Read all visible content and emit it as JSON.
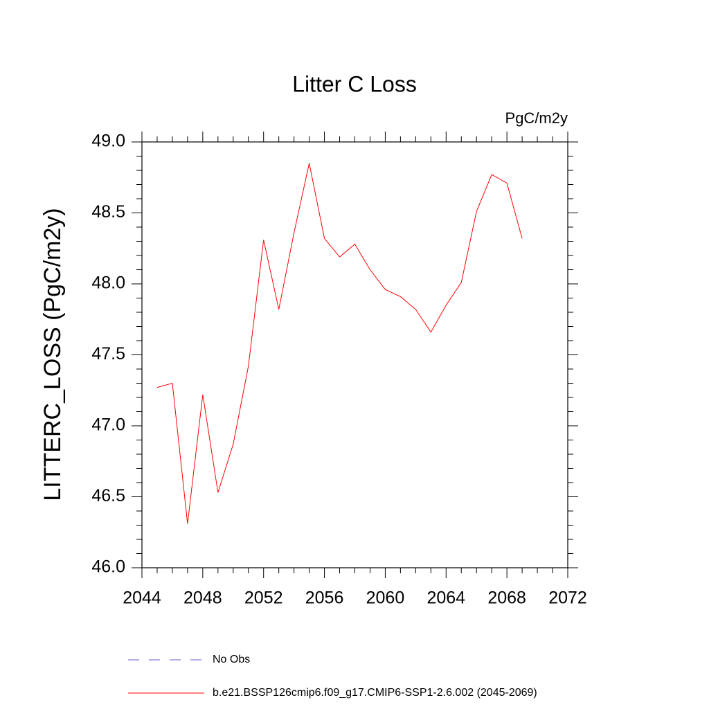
{
  "chart_data": {
    "type": "line",
    "title": "Litter C Loss",
    "units": "PgC/m2y",
    "y_label": "LITTERC_LOSS  (PgC/m2y)",
    "x": [
      2045,
      2046,
      2047,
      2048,
      2049,
      2050,
      2051,
      2052,
      2053,
      2054,
      2055,
      2056,
      2057,
      2058,
      2059,
      2060,
      2061,
      2062,
      2063,
      2064,
      2065,
      2066,
      2067,
      2068,
      2069
    ],
    "series": [
      {
        "name": "b.e21.BSSP126cmip6.f09_g17.CMIP6-SSP1-2.6.002 (2045-2069)",
        "color": "#ff0000",
        "values": [
          47.27,
          47.3,
          46.31,
          47.22,
          46.53,
          46.87,
          47.42,
          48.31,
          47.82,
          48.36,
          48.85,
          48.32,
          48.19,
          48.28,
          48.1,
          47.96,
          47.91,
          47.82,
          47.66,
          47.85,
          48.01,
          48.51,
          48.77,
          48.71,
          48.32
        ]
      }
    ],
    "reference": {
      "name": "No Obs",
      "color": "#6a5acd",
      "dashed": true
    },
    "xlim": [
      2044,
      2072
    ],
    "xticks": [
      2044,
      2048,
      2052,
      2056,
      2060,
      2064,
      2068,
      2072
    ],
    "ylim": [
      46.0,
      49.0
    ],
    "yticks": [
      {
        "value": 46.0,
        "label": "46.0"
      },
      {
        "value": 46.5,
        "label": "46.5"
      },
      {
        "value": 47.0,
        "label": "47.0"
      },
      {
        "value": 47.5,
        "label": "47.5"
      },
      {
        "value": 48.0,
        "label": "48.0"
      },
      {
        "value": 48.5,
        "label": "48.5"
      },
      {
        "value": 49.0,
        "label": "49.0"
      }
    ],
    "grid": false
  }
}
